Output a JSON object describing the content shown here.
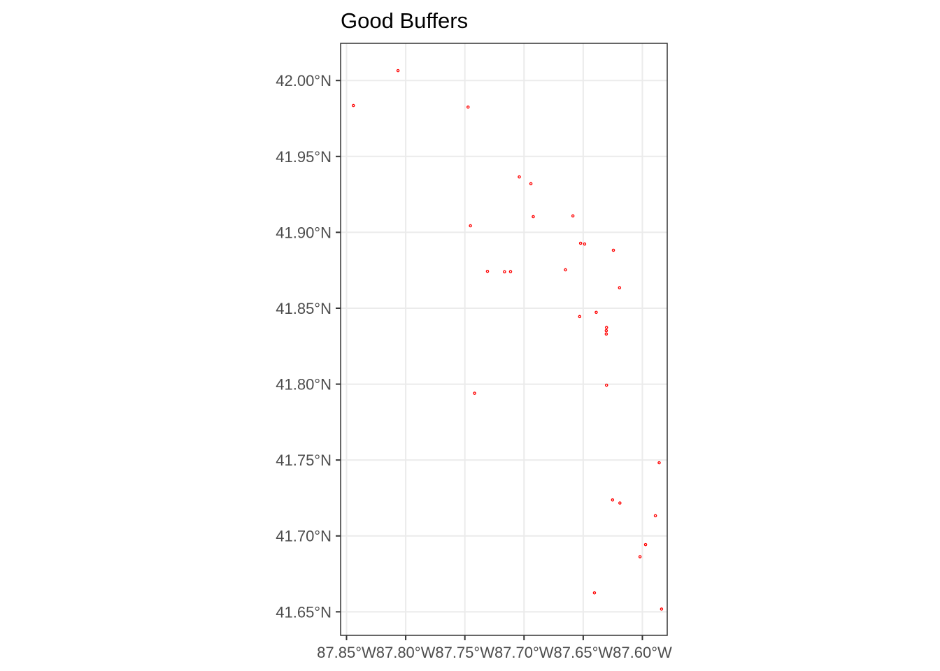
{
  "chart_data": {
    "type": "scatter",
    "title": "Good Buffers",
    "xlabel": "",
    "ylabel": "",
    "xlim": [
      -87.855,
      -87.579
    ],
    "ylim": [
      41.6345,
      42.0245
    ],
    "grid": true,
    "x_ticks": [
      {
        "value": -87.85,
        "label": "87.85°W"
      },
      {
        "value": -87.8,
        "label": "87.80°W"
      },
      {
        "value": -87.75,
        "label": "87.75°W"
      },
      {
        "value": -87.7,
        "label": "87.70°W"
      },
      {
        "value": -87.65,
        "label": "87.65°W"
      },
      {
        "value": -87.6,
        "label": "87.60°W"
      }
    ],
    "y_ticks": [
      {
        "value": 41.65,
        "label": "41.65°N"
      },
      {
        "value": 41.7,
        "label": "41.70°N"
      },
      {
        "value": 41.75,
        "label": "41.75°N"
      },
      {
        "value": 41.8,
        "label": "41.80°N"
      },
      {
        "value": 41.85,
        "label": "41.85°N"
      },
      {
        "value": 41.9,
        "label": "41.90°N"
      },
      {
        "value": 41.95,
        "label": "41.95°N"
      },
      {
        "value": 42.0,
        "label": "42.00°N"
      }
    ],
    "colors": {
      "points": "#ff0000",
      "panel_border": "#333333",
      "grid": "#ebebeb"
    },
    "points": [
      {
        "x": -87.8065,
        "y": 42.0065
      },
      {
        "x": -87.8442,
        "y": 41.9835
      },
      {
        "x": -87.7473,
        "y": 41.9825
      },
      {
        "x": -87.704,
        "y": 41.9365
      },
      {
        "x": -87.6942,
        "y": 41.932
      },
      {
        "x": -87.6922,
        "y": 41.9103
      },
      {
        "x": -87.6587,
        "y": 41.9108
      },
      {
        "x": -87.7453,
        "y": 41.9043
      },
      {
        "x": -87.6522,
        "y": 41.8928
      },
      {
        "x": -87.6488,
        "y": 41.8923
      },
      {
        "x": -87.6245,
        "y": 41.8882
      },
      {
        "x": -87.7309,
        "y": 41.8743
      },
      {
        "x": -87.7165,
        "y": 41.874
      },
      {
        "x": -87.7114,
        "y": 41.8741
      },
      {
        "x": -87.665,
        "y": 41.8753
      },
      {
        "x": -87.6193,
        "y": 41.8635
      },
      {
        "x": -87.639,
        "y": 41.8473
      },
      {
        "x": -87.653,
        "y": 41.8445
      },
      {
        "x": -87.6303,
        "y": 41.8373
      },
      {
        "x": -87.6305,
        "y": 41.8352
      },
      {
        "x": -87.6305,
        "y": 41.833
      },
      {
        "x": -87.6303,
        "y": 41.7993
      },
      {
        "x": -87.7418,
        "y": 41.794
      },
      {
        "x": -87.5858,
        "y": 41.7482
      },
      {
        "x": -87.6252,
        "y": 41.7237
      },
      {
        "x": -87.619,
        "y": 41.7217
      },
      {
        "x": -87.589,
        "y": 41.7133
      },
      {
        "x": -87.5973,
        "y": 41.6943
      },
      {
        "x": -87.602,
        "y": 41.6863
      },
      {
        "x": -87.6405,
        "y": 41.6625
      },
      {
        "x": -87.5838,
        "y": 41.6518
      }
    ]
  }
}
